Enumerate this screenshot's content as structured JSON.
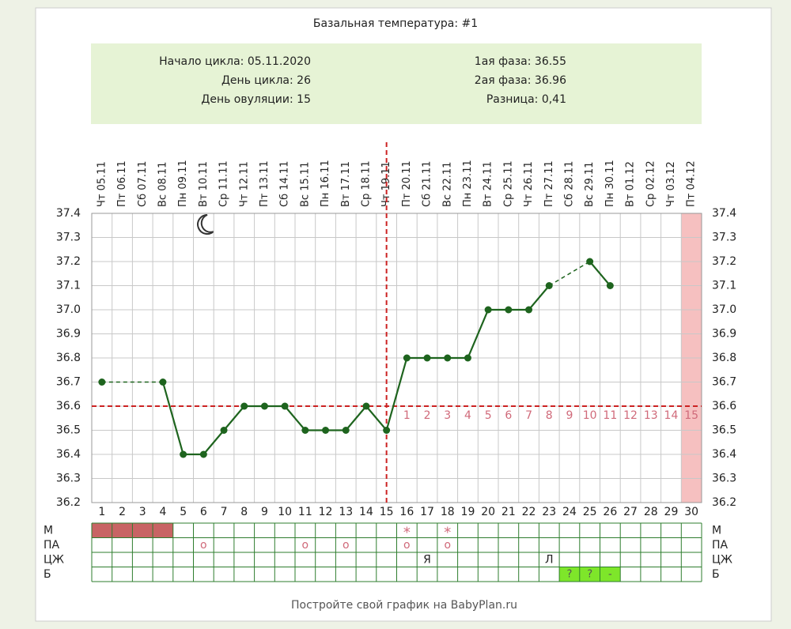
{
  "chart_data": {
    "type": "line",
    "title": "Базальная температура: #1",
    "info": [
      {
        "label": "Начало цикла:",
        "value": "05.11.2020"
      },
      {
        "label": "День цикла:",
        "value": 26
      },
      {
        "label": "День овуляции:",
        "value": 15
      },
      {
        "label": "1ая фаза:",
        "value": 36.55
      },
      {
        "label": "2ая фаза:",
        "value": 36.96
      },
      {
        "label": "Разница:",
        "value": {
          "value": 0.41,
          "label": "0,41"
        }
      }
    ],
    "days": [
      1,
      2,
      3,
      4,
      5,
      6,
      7,
      8,
      9,
      10,
      11,
      12,
      13,
      14,
      15,
      16,
      17,
      18,
      19,
      20,
      21,
      22,
      23,
      24,
      25,
      26,
      27,
      28,
      29,
      30
    ],
    "categories": [
      "Чт 05.11",
      "Пт 06.11",
      "Сб 07.11",
      "Вс 08.11",
      "Пн 09.11",
      "Вт 10.11",
      "Ср 11.11",
      "Чт 12.11",
      "Пт 13.11",
      "Сб 14.11",
      "Вс 15.11",
      "Пн 16.11",
      "Вт 17.11",
      "Ср 18.11",
      "Чт 19.11",
      "Пт 20.11",
      "Сб 21.11",
      "Вс 22.11",
      "Пн 23.11",
      "Вт 24.11",
      "Ср 25.11",
      "Чт 26.11",
      "Пт 27.11",
      "Сб 28.11",
      "Вс 29.11",
      "Пн 30.11",
      "Вт 01.12",
      "Ср 02.12",
      "Чт 03.12",
      "Пт 04.12"
    ],
    "series": [
      {
        "name": "temperature",
        "color": "#1e641e",
        "values": [
          36.7,
          null,
          null,
          36.7,
          36.4,
          36.4,
          36.5,
          36.6,
          36.6,
          36.6,
          36.5,
          36.5,
          36.5,
          36.6,
          36.5,
          36.8,
          36.8,
          36.8,
          36.8,
          37.0,
          37.0,
          37.0,
          37.1,
          null,
          37.2,
          37.1,
          null,
          null,
          null,
          null
        ]
      }
    ],
    "ylim": [
      36.2,
      37.4
    ],
    "yticks": [
      36.2,
      36.3,
      36.4,
      36.5,
      36.6,
      36.7,
      36.8,
      36.9,
      {
        "value": 37,
        "label": "37.0"
      },
      37.1,
      37.2,
      37.3,
      37.4
    ],
    "grid": true,
    "cover_line": 36.6,
    "ovulation_day": 15,
    "luteal_day_labels": [
      1,
      2,
      3,
      4,
      5,
      6,
      7,
      8,
      9,
      10,
      11,
      12,
      13,
      14,
      15
    ],
    "highlight_day": 30,
    "marks_table": [
      {
        "label": "М",
        "filled_days": [
          1,
          2,
          3,
          4
        ],
        "fill": "#c86464",
        "entries": [
          {
            "day": 16,
            "text": "*"
          },
          {
            "day": 18,
            "text": "*"
          }
        ]
      },
      {
        "label": "ПА",
        "entries": [
          {
            "day": 6,
            "text": "o"
          },
          {
            "day": 11,
            "text": "o"
          },
          {
            "day": 13,
            "text": "o"
          },
          {
            "day": 16,
            "text": "o"
          },
          {
            "day": 18,
            "text": "o"
          }
        ]
      },
      {
        "label": "ЦЖ",
        "entries": [
          {
            "day": 17,
            "text": "Я"
          },
          {
            "day": 23,
            "text": "Л"
          }
        ]
      },
      {
        "label": "Б",
        "filled_days": [
          24,
          25,
          26
        ],
        "fill": "#7ee62a",
        "entries": [
          {
            "day": 24,
            "text": "?"
          },
          {
            "day": 25,
            "text": "?"
          },
          {
            "day": 26,
            "text": "-"
          }
        ]
      }
    ],
    "footer": "Постройте свой график на BabyPlan.ru"
  }
}
